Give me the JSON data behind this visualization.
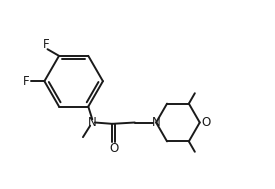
{
  "background_color": "#ffffff",
  "line_color": "#1a1a1a",
  "line_width": 1.4,
  "font_size": 8.5,
  "figsize": [
    2.75,
    1.89
  ],
  "dpi": 100,
  "xlim": [
    0,
    10
  ],
  "ylim": [
    0,
    7
  ]
}
